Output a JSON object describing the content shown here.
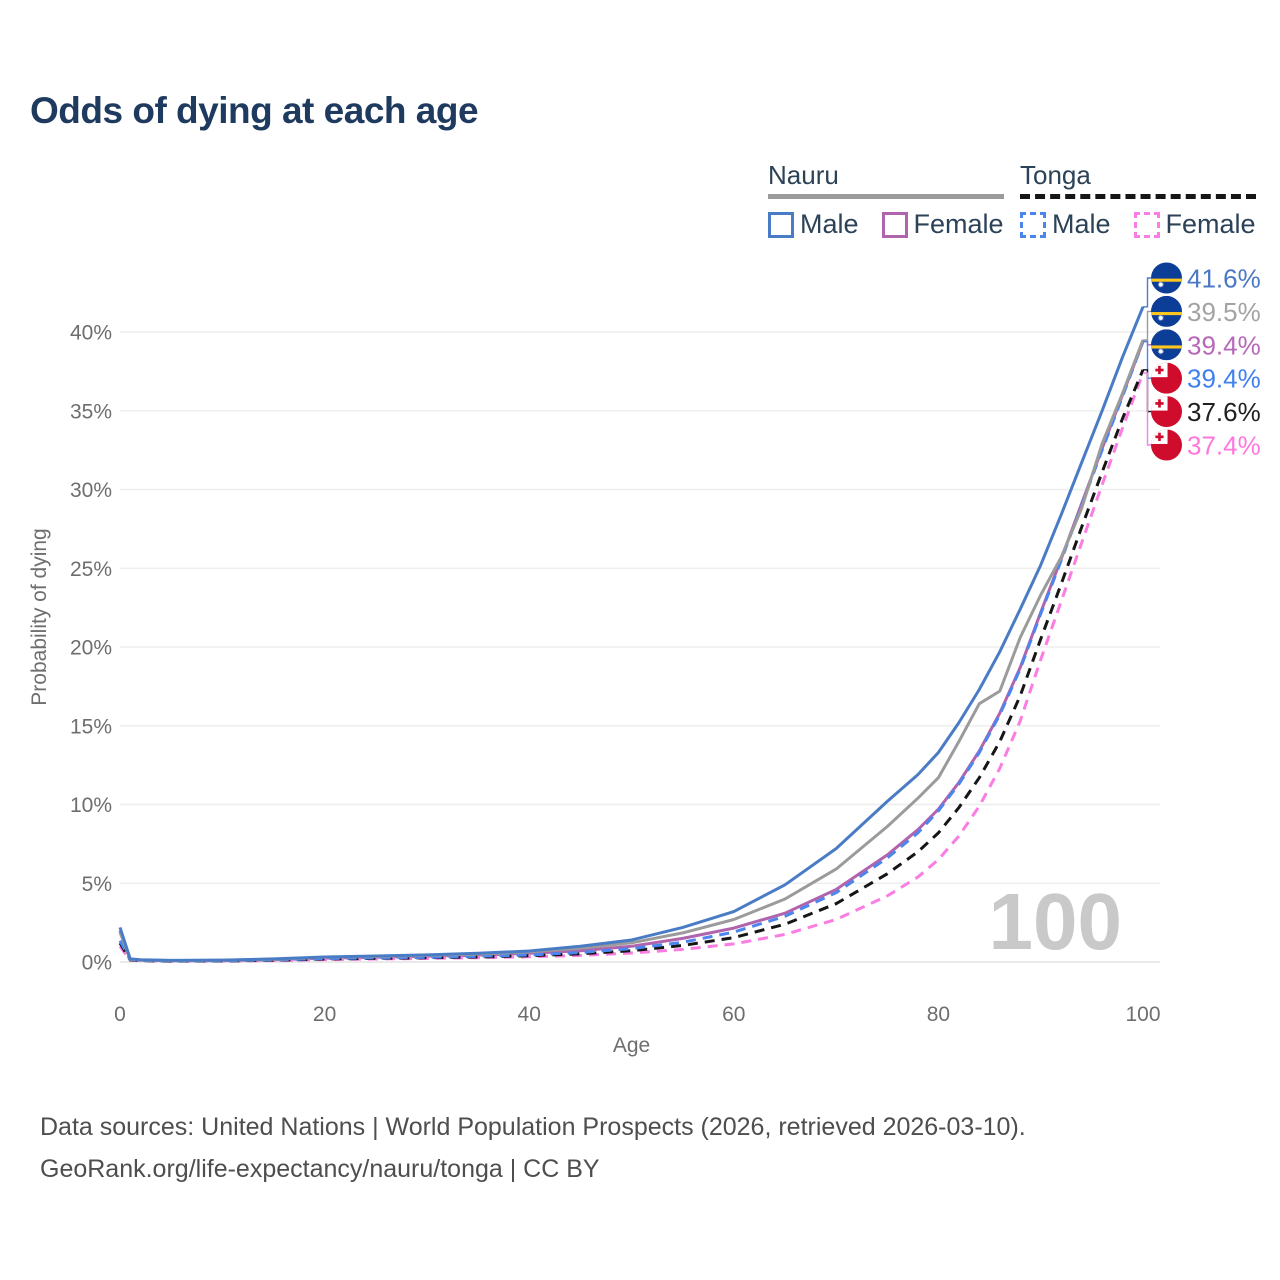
{
  "title": "Odds of dying at each age",
  "legend": {
    "groups": [
      {
        "label": "Nauru",
        "line_style": "solid",
        "line_color": "#9b9b9b",
        "items": [
          {
            "label": "Male",
            "series": "nauru-male"
          },
          {
            "label": "Female",
            "series": "nauru-female"
          }
        ]
      },
      {
        "label": "Tonga",
        "line_style": "dashed",
        "line_color": "#161616",
        "items": [
          {
            "label": "Male",
            "series": "tonga-male"
          },
          {
            "label": "Female",
            "series": "tonga-female"
          }
        ]
      }
    ]
  },
  "chart_data": {
    "type": "line",
    "title": "Odds of dying at each age",
    "xlabel": "Age",
    "ylabel": "Probability of dying",
    "xlim": [
      0,
      100
    ],
    "ylim": [
      0,
      44
    ],
    "xticks": [
      0,
      20,
      40,
      60,
      80,
      100
    ],
    "yticks": [
      0,
      5,
      10,
      15,
      20,
      25,
      30,
      35,
      40
    ],
    "grid": "horizontal",
    "legend_position": "top-right",
    "watermark": "100",
    "ages": [
      0,
      1,
      2,
      5,
      10,
      15,
      20,
      25,
      30,
      35,
      40,
      45,
      50,
      55,
      60,
      65,
      70,
      75,
      78,
      80,
      82,
      84,
      86,
      88,
      90,
      92,
      94,
      96,
      98,
      100
    ],
    "series": [
      {
        "id": "nauru-female",
        "name": "Nauru Female",
        "country": "Nauru",
        "sex": "Female",
        "color": "#b064ad",
        "style": "solid",
        "values": [
          2.0,
          0.18,
          0.12,
          0.08,
          0.09,
          0.14,
          0.25,
          0.3,
          0.36,
          0.44,
          0.55,
          0.72,
          1.0,
          1.5,
          2.15,
          3.1,
          4.6,
          6.8,
          8.4,
          9.7,
          11.4,
          13.4,
          15.8,
          18.7,
          22.2,
          25.6,
          29.1,
          32.6,
          36.0,
          39.4
        ]
      },
      {
        "id": "tonga-female",
        "name": "Tonga Female",
        "country": "Tonga",
        "sex": "Female",
        "color": "#fb7ce3",
        "style": "dashed",
        "values": [
          1.0,
          0.12,
          0.08,
          0.05,
          0.06,
          0.09,
          0.15,
          0.19,
          0.23,
          0.27,
          0.33,
          0.42,
          0.57,
          0.8,
          1.15,
          1.75,
          2.7,
          4.2,
          5.4,
          6.5,
          8.0,
          9.9,
          12.3,
          15.3,
          19.2,
          22.9,
          26.6,
          30.3,
          33.9,
          37.4
        ]
      },
      {
        "id": "tonga-all",
        "name": "Tonga Both sexes",
        "country": "Tonga",
        "sex": "Both",
        "color": "#161616",
        "style": "dashed",
        "values": [
          1.2,
          0.13,
          0.09,
          0.06,
          0.07,
          0.11,
          0.19,
          0.23,
          0.27,
          0.32,
          0.4,
          0.52,
          0.72,
          1.05,
          1.55,
          2.4,
          3.7,
          5.6,
          7.0,
          8.2,
          9.8,
          11.7,
          14.0,
          16.9,
          20.5,
          24.0,
          27.6,
          31.1,
          34.5,
          37.6
        ]
      },
      {
        "id": "tonga-male",
        "name": "Tonga Male",
        "country": "Tonga",
        "sex": "Male",
        "color": "#4d85ee",
        "style": "dashed",
        "values": [
          1.35,
          0.15,
          0.1,
          0.07,
          0.08,
          0.13,
          0.22,
          0.26,
          0.3,
          0.36,
          0.45,
          0.6,
          0.85,
          1.25,
          1.9,
          2.9,
          4.4,
          6.6,
          8.2,
          9.6,
          11.3,
          13.3,
          15.7,
          18.6,
          22.1,
          25.5,
          29.0,
          32.5,
          35.9,
          39.4
        ]
      },
      {
        "id": "nauru-all",
        "name": "Nauru Both sexes",
        "country": "Nauru",
        "sex": "Both",
        "color": "#9b9b9b",
        "style": "solid",
        "values": [
          1.9,
          0.18,
          0.13,
          0.09,
          0.11,
          0.18,
          0.3,
          0.35,
          0.42,
          0.5,
          0.64,
          0.88,
          1.22,
          1.85,
          2.7,
          4.0,
          5.9,
          8.6,
          10.4,
          11.7,
          14.0,
          16.4,
          17.2,
          20.6,
          23.3,
          25.7,
          28.8,
          32.9,
          36.1,
          39.5
        ]
      },
      {
        "id": "nauru-male",
        "name": "Nauru Male",
        "country": "Nauru",
        "sex": "Male",
        "color": "#4a7cc6",
        "style": "solid",
        "values": [
          2.2,
          0.2,
          0.14,
          0.1,
          0.12,
          0.2,
          0.32,
          0.38,
          0.45,
          0.55,
          0.7,
          1.0,
          1.4,
          2.2,
          3.2,
          4.9,
          7.2,
          10.2,
          11.9,
          13.3,
          15.2,
          17.3,
          19.7,
          22.4,
          25.2,
          28.4,
          31.7,
          35.0,
          38.4,
          41.6
        ]
      }
    ]
  },
  "end_labels": [
    {
      "series": "nauru-male",
      "flag": "nauru",
      "value": "41.6%",
      "color": "#4a77c6"
    },
    {
      "series": "nauru-all",
      "flag": "nauru",
      "value": "39.5%",
      "color": "#a3a3a3"
    },
    {
      "series": "nauru-female",
      "flag": "nauru",
      "value": "39.4%",
      "color": "#b667b8"
    },
    {
      "series": "tonga-male",
      "flag": "tonga",
      "value": "39.4%",
      "color": "#3f80f0"
    },
    {
      "series": "tonga-all",
      "flag": "tonga",
      "value": "37.6%",
      "color": "#1f1f1f"
    },
    {
      "series": "tonga-female",
      "flag": "tonga",
      "value": "37.4%",
      "color": "#ff77dd"
    }
  ],
  "footer": {
    "line1": "Data sources: United Nations | World Population Prospects (2026, retrieved 2026-03-10).",
    "line2": "GeoRank.org/life-expectancy/nauru/tonga | CC BY"
  }
}
